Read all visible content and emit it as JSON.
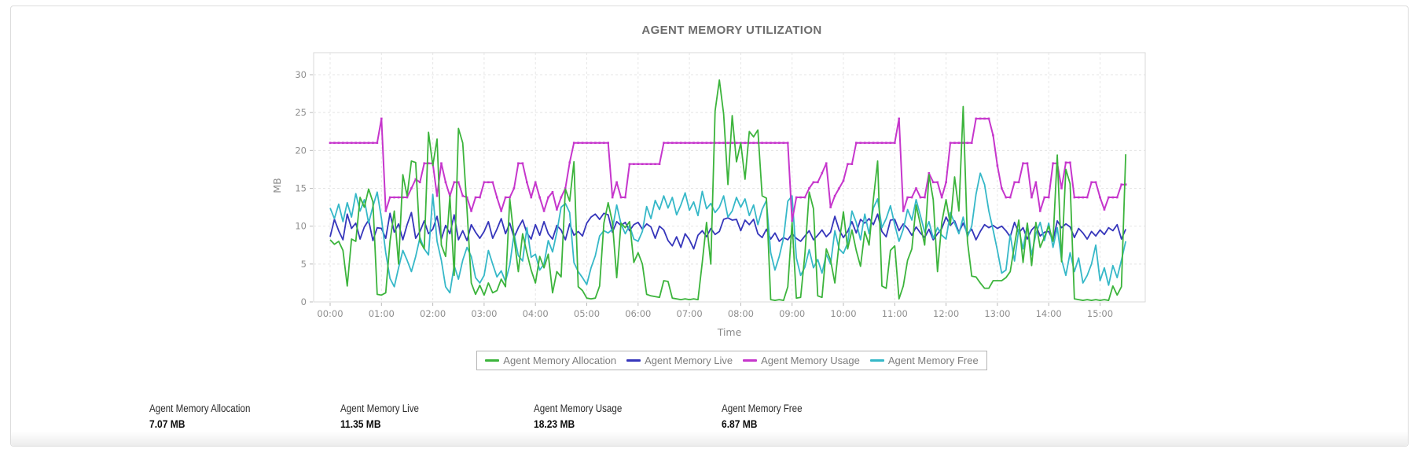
{
  "chart_data": {
    "type": "line",
    "title": "AGENT MEMORY UTILIZATION",
    "xlabel": "Time",
    "ylabel": "MB",
    "ylim": [
      0,
      33
    ],
    "y_ticks": [
      0,
      5,
      10,
      15,
      20,
      25,
      30
    ],
    "x_ticks": [
      "00:00",
      "01:00",
      "02:00",
      "03:00",
      "04:00",
      "05:00",
      "06:00",
      "07:00",
      "08:00",
      "09:00",
      "10:00",
      "11:00",
      "12:00",
      "13:00",
      "14:00",
      "15:00"
    ],
    "x_start": "00:00",
    "x_interval_minutes": 5,
    "grid": true,
    "legend_position": "bottom",
    "series": [
      {
        "name": "Agent Memory Allocation",
        "color": "#3cb43c",
        "values": [
          8.2,
          7.6,
          8.0,
          6.8,
          2.1,
          8.3,
          8.0,
          13.8,
          12.5,
          14.9,
          13.2,
          1.0,
          0.9,
          1.2,
          8.0,
          12.0,
          5.0,
          16.8,
          14.0,
          18.6,
          18.4,
          8.0,
          7.0,
          22.4,
          18.0,
          21.5,
          7.5,
          6.0,
          14.0,
          3.5,
          22.9,
          21.0,
          12.2,
          2.5,
          1.0,
          2.2,
          0.9,
          2.5,
          1.2,
          1.5,
          3.0,
          2.0,
          13.6,
          8.5,
          4.0,
          9.0,
          6.5,
          4.2,
          2.5,
          6.0,
          4.5,
          6.3,
          1.2,
          4.0,
          3.3,
          14.9,
          13.3,
          18.5,
          2.0,
          1.5,
          0.5,
          0.4,
          0.5,
          2.1,
          10.4,
          13.1,
          10.5,
          3.2,
          10.4,
          9.8,
          10.6,
          5.2,
          6.5,
          5.0,
          1.0,
          0.8,
          0.7,
          0.6,
          2.8,
          2.7,
          0.5,
          0.4,
          0.3,
          0.4,
          0.3,
          0.4,
          0.3,
          5.2,
          10.5,
          5.0,
          25.2,
          29.3,
          24.8,
          15.5,
          24.6,
          18.5,
          21.0,
          16.2,
          22.5,
          21.8,
          22.7,
          14.0,
          13.7,
          0.3,
          0.2,
          0.3,
          0.2,
          2.0,
          10.5,
          0.5,
          0.6,
          6.3,
          14.5,
          12.3,
          0.8,
          0.6,
          7.0,
          5.5,
          2.5,
          7.8,
          11.9,
          7.0,
          9.5,
          6.8,
          4.7,
          9.3,
          7.5,
          13.5,
          18.6,
          2.1,
          1.8,
          6.8,
          7.4,
          0.4,
          2.1,
          5.5,
          7.0,
          12.8,
          10.2,
          7.5,
          16.8,
          13.5,
          4.0,
          10.5,
          13.5,
          10.2,
          16.5,
          12.0,
          25.8,
          8.0,
          3.4,
          3.3,
          2.5,
          1.8,
          1.8,
          2.8,
          2.8,
          2.8,
          3.2,
          4.0,
          7.5,
          10.8,
          5.2,
          10.4,
          4.8,
          10.5,
          7.2,
          8.6,
          10.0,
          8.0,
          19.4,
          5.3,
          17.5,
          15.6,
          0.4,
          0.3,
          0.2,
          0.3,
          0.2,
          0.3,
          0.2,
          0.3,
          0.2,
          2.1,
          0.9,
          2.0,
          19.5
        ]
      },
      {
        "name": "Agent Memory Live",
        "color": "#3636bb",
        "values": [
          8.6,
          10.9,
          9.4,
          8.2,
          11.6,
          9.7,
          10.4,
          8.3,
          9.9,
          10.8,
          8.1,
          9.8,
          9.7,
          8.4,
          11.7,
          9.2,
          10.3,
          8.2,
          10.2,
          11.8,
          8.4,
          9.3,
          10.7,
          9.0,
          9.6,
          11.3,
          8.3,
          10.1,
          9.0,
          11.5,
          8.2,
          9.4,
          8.1,
          10.2,
          9.2,
          8.4,
          9.3,
          10.6,
          8.4,
          9.6,
          11.0,
          9.0,
          10.4,
          8.5,
          9.8,
          10.8,
          9.1,
          8.3,
          10.2,
          8.8,
          10.6,
          9.0,
          8.3,
          10.1,
          9.5,
          8.2,
          10.3,
          8.8,
          9.3,
          8.7,
          10.4,
          11.2,
          11.6,
          10.9,
          11.7,
          11.5,
          9.2,
          10.6,
          10.1,
          10.5,
          9.4,
          10.2,
          10.5,
          9.6,
          10.3,
          9.9,
          8.4,
          10.0,
          9.5,
          8.1,
          7.4,
          8.6,
          7.2,
          9.0,
          8.2,
          7.0,
          8.8,
          9.4,
          8.6,
          9.7,
          8.9,
          9.3,
          10.9,
          11.1,
          10.8,
          10.9,
          9.4,
          10.8,
          10.2,
          10.9,
          9.0,
          8.5,
          9.6,
          8.3,
          9.1,
          8.0,
          8.5,
          8.2,
          9.0,
          8.4,
          8.0,
          8.7,
          9.4,
          8.2,
          8.8,
          9.5,
          8.6,
          9.2,
          11.3,
          9.5,
          8.5,
          9.3,
          10.6,
          9.1,
          10.9,
          10.4,
          11.0,
          10.2,
          11.6,
          9.3,
          8.6,
          10.8,
          10.9,
          9.4,
          10.3,
          9.7,
          8.8,
          9.9,
          9.1,
          8.5,
          9.6,
          8.2,
          9.0,
          9.7,
          11.2,
          10.1,
          10.7,
          9.2,
          10.4,
          9.0,
          9.6,
          8.2,
          9.3,
          10.2,
          9.8,
          10.1,
          9.7,
          10.0,
          9.4,
          8.6,
          10.5,
          9.1,
          9.8,
          8.3,
          9.5,
          10.1,
          8.7,
          9.2,
          9.3,
          8.1,
          10.7,
          9.8,
          10.3,
          9.9,
          8.5,
          9.7,
          9.1,
          8.3,
          9.3,
          8.7,
          9.5,
          8.9,
          9.8,
          9.4,
          10.2,
          8.3,
          9.6
        ]
      },
      {
        "name": "Agent Memory Usage",
        "color": "#c636cc",
        "values": [
          21,
          21,
          21,
          21,
          21,
          21,
          21,
          21,
          21,
          21,
          21,
          21,
          24.2,
          12,
          13.8,
          13.8,
          13.8,
          13.8,
          13.8,
          15,
          16.2,
          15.8,
          18.3,
          18.3,
          18.3,
          14,
          18.3,
          15.8,
          14,
          15.8,
          15.8,
          14,
          13.8,
          12,
          13.8,
          13.8,
          15.8,
          15.8,
          15.8,
          13.8,
          12,
          13.8,
          13.8,
          15,
          18.3,
          18.3,
          15.8,
          13.8,
          15.8,
          13.8,
          12,
          13.8,
          14.5,
          12.2,
          13.8,
          15,
          18.4,
          21,
          21,
          21,
          21,
          21,
          21,
          21,
          21,
          21,
          13.8,
          15.8,
          13.8,
          13.8,
          18.2,
          18.2,
          18.2,
          18.2,
          18.2,
          18.2,
          18.2,
          18.2,
          21,
          21,
          21,
          21,
          21,
          21,
          21,
          21,
          21,
          21,
          21,
          21,
          21,
          21,
          21,
          21,
          21,
          21,
          21,
          21,
          21,
          21,
          21,
          21,
          21,
          21,
          21,
          21,
          21,
          21,
          10.7,
          13.8,
          13.8,
          13.8,
          15,
          15.8,
          15.8,
          17,
          18.3,
          12.5,
          14,
          15,
          16,
          18.2,
          18.2,
          21,
          21,
          21,
          21,
          21,
          21,
          21,
          21,
          21,
          21,
          24.2,
          12,
          13.8,
          13.8,
          15,
          13.8,
          13.8,
          17,
          15.8,
          15.8,
          13.8,
          15.8,
          21,
          21,
          21,
          21,
          21,
          21,
          24.2,
          24.2,
          24.2,
          24.2,
          22,
          18,
          15,
          13.8,
          13.8,
          15.8,
          15.8,
          18.3,
          18.3,
          13.8,
          15.8,
          12,
          13.8,
          13.8,
          18.3,
          18.3,
          15,
          18.4,
          18.4,
          13.8,
          13.8,
          13.8,
          13.8,
          15.8,
          15.8,
          13.8,
          12.2,
          13.8,
          13.8,
          13.8,
          15.5,
          15.5
        ]
      },
      {
        "name": "Agent Memory Free",
        "color": "#36b8c8",
        "values": [
          12.4,
          11.0,
          12.9,
          10.6,
          13.1,
          11.2,
          14.3,
          12.0,
          13.5,
          10.4,
          12.6,
          14.5,
          11.0,
          6.5,
          3.1,
          2.0,
          4.5,
          6.8,
          5.5,
          4.0,
          6.0,
          8.5,
          7.0,
          6.2,
          14.2,
          8.0,
          5.5,
          2.0,
          1.2,
          4.8,
          3.0,
          5.5,
          7.2,
          6.0,
          3.2,
          2.5,
          3.5,
          6.8,
          5.0,
          3.3,
          4.1,
          2.7,
          4.9,
          9.0,
          6.1,
          5.4,
          9.8,
          5.9,
          6.3,
          4.2,
          5.0,
          8.1,
          6.6,
          9.2,
          12.5,
          13.0,
          11.8,
          5.2,
          4.0,
          3.2,
          2.3,
          4.5,
          6.1,
          8.7,
          9.4,
          9.1,
          9.6,
          12.8,
          10.3,
          9.0,
          10.1,
          8.3,
          8.0,
          9.3,
          12.6,
          11.0,
          13.4,
          12.2,
          14.0,
          12.4,
          13.8,
          11.5,
          12.8,
          14.4,
          12.1,
          13.2,
          11.4,
          14.6,
          12.3,
          13.0,
          11.8,
          12.5,
          14.0,
          11.2,
          12.0,
          13.8,
          12.5,
          13.6,
          11.4,
          12.8,
          10.2,
          12.2,
          13.4,
          6.5,
          4.2,
          6.0,
          8.4,
          13.3,
          14.0,
          5.8,
          3.5,
          4.6,
          6.9,
          4.5,
          5.6,
          3.8,
          6.3,
          5.0,
          9.4,
          7.0,
          6.4,
          7.8,
          12.0,
          10.5,
          8.2,
          11.6,
          9.0,
          12.4,
          13.6,
          9.8,
          11.0,
          12.7,
          10.2,
          8.0,
          9.6,
          12.2,
          10.8,
          13.5,
          11.4,
          9.2,
          10.6,
          8.4,
          9.8,
          8.8,
          8.3,
          11.8,
          10.4,
          9.0,
          11.2,
          8.6,
          10.0,
          14.2,
          17.0,
          15.5,
          12.0,
          9.5,
          6.8,
          3.8,
          4.2,
          8.9,
          5.4,
          9.6,
          7.0,
          10.3,
          6.2,
          9.0,
          10.5,
          8.1,
          10.4,
          7.2,
          9.8,
          5.6,
          3.5,
          6.5,
          4.0,
          5.8,
          2.5,
          3.5,
          5.0,
          7.5,
          2.8,
          4.5,
          2.2,
          4.8,
          3.2,
          5.5,
          8.0
        ]
      }
    ]
  },
  "summary": {
    "items": [
      {
        "label": "Agent Memory Allocation",
        "value": "7.07 MB"
      },
      {
        "label": "Agent Memory Live",
        "value": "11.35 MB"
      },
      {
        "label": "Agent Memory Usage",
        "value": "18.23 MB"
      },
      {
        "label": "Agent Memory Free",
        "value": "6.87 MB"
      }
    ]
  }
}
